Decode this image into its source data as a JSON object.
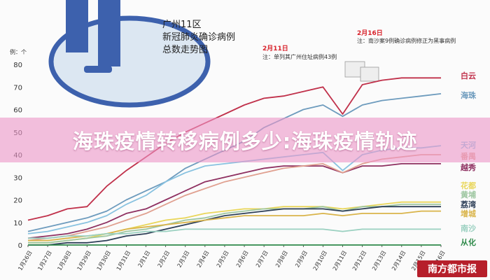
{
  "banner": {
    "title": "海珠疫情转移病例多少:海珠疫情轨迹"
  },
  "chart_data": {
    "type": "line",
    "title": [
      "广州11区",
      "新冠肺炎确诊病例",
      "总数走势图"
    ],
    "ylabel": "例：个",
    "ylim": [
      0,
      80
    ],
    "yticks": [
      0,
      10,
      20,
      30,
      40,
      50,
      60,
      70,
      80
    ],
    "grid": false,
    "legend": "right-end labels",
    "categories": [
      "1月26日",
      "1月27日",
      "1月28日",
      "1月29日",
      "1月30日",
      "1月31日",
      "2月1日",
      "2月2日",
      "2月3日",
      "2月4日",
      "2月5日",
      "2月6日",
      "2月7日",
      "2月8日",
      "2月9日",
      "2月10日",
      "2月11日",
      "2月12日",
      "2月13日",
      "2月14日",
      "2月15日",
      "2月16日"
    ],
    "series": [
      {
        "name": "白云",
        "color": "#c0304a",
        "values": [
          11,
          13,
          16,
          17,
          26,
          33,
          39,
          45,
          50,
          54,
          58,
          62,
          65,
          66,
          68,
          70,
          58,
          71,
          73,
          74,
          74,
          74
        ]
      },
      {
        "name": "海珠",
        "color": "#6d9bbd",
        "values": [
          6,
          8,
          10,
          12,
          15,
          20,
          24,
          28,
          34,
          38,
          42,
          46,
          52,
          56,
          60,
          62,
          57,
          62,
          64,
          65,
          66,
          67
        ]
      },
      {
        "name": "天河",
        "color": "#88c2e0",
        "values": [
          5,
          6,
          8,
          10,
          13,
          18,
          22,
          28,
          32,
          35,
          36,
          37,
          38,
          39,
          40,
          41,
          33,
          40,
          42,
          43,
          43,
          44
        ]
      },
      {
        "name": "越秀",
        "color": "#8e2f60",
        "values": [
          3,
          4,
          5,
          7,
          10,
          14,
          16,
          20,
          24,
          28,
          30,
          32,
          34,
          35,
          35,
          35,
          32,
          35,
          35,
          36,
          36,
          36
        ]
      },
      {
        "name": "番禺",
        "color": "#e0a090",
        "values": [
          2,
          3,
          4,
          6,
          8,
          11,
          14,
          18,
          22,
          25,
          28,
          30,
          32,
          34,
          35,
          36,
          32,
          36,
          38,
          39,
          40,
          40
        ]
      },
      {
        "name": "花都",
        "color": "#e9d65a",
        "values": [
          1,
          1,
          2,
          3,
          5,
          7,
          9,
          11,
          12,
          14,
          15,
          16,
          16,
          17,
          17,
          17,
          16,
          17,
          18,
          19,
          19,
          19
        ]
      },
      {
        "name": "黄埔",
        "color": "#9dc6a0",
        "values": [
          1,
          1,
          2,
          3,
          4,
          6,
          7,
          9,
          11,
          12,
          14,
          15,
          16,
          16,
          16,
          17,
          15,
          17,
          17,
          18,
          18,
          18
        ]
      },
      {
        "name": "荔湾",
        "color": "#2d3f57",
        "values": [
          0,
          0,
          1,
          1,
          2,
          4,
          5,
          7,
          9,
          11,
          13,
          14,
          15,
          16,
          16,
          16,
          15,
          16,
          17,
          17,
          17,
          17
        ]
      },
      {
        "name": "增城",
        "color": "#d9b44a",
        "values": [
          2,
          2,
          3,
          4,
          5,
          7,
          8,
          9,
          10,
          11,
          12,
          13,
          13,
          13,
          13,
          14,
          13,
          14,
          14,
          14,
          15,
          15
        ]
      },
      {
        "name": "南沙",
        "color": "#9ad0c0",
        "values": [
          3,
          3,
          4,
          4,
          5,
          5,
          6,
          6,
          7,
          7,
          7,
          7,
          7,
          7,
          7,
          7,
          6,
          7,
          7,
          7,
          7,
          7
        ]
      },
      {
        "name": "从化",
        "color": "#2f8a4a",
        "values": [
          0,
          0,
          0,
          0,
          0,
          0,
          0,
          0,
          0,
          0,
          0,
          0,
          0,
          0,
          0,
          0,
          0,
          0,
          0,
          0,
          0,
          0
        ]
      }
    ],
    "annotations": [
      {
        "date": "2月11日",
        "note": "注：单列其广州住址病例43例",
        "color": "#d8212a"
      },
      {
        "date": "2月16日",
        "note": "注：南沙案9例确诊病例修正为黑事病例",
        "color": "#d8212a"
      }
    ]
  },
  "source": {
    "label": "南方都市报"
  }
}
